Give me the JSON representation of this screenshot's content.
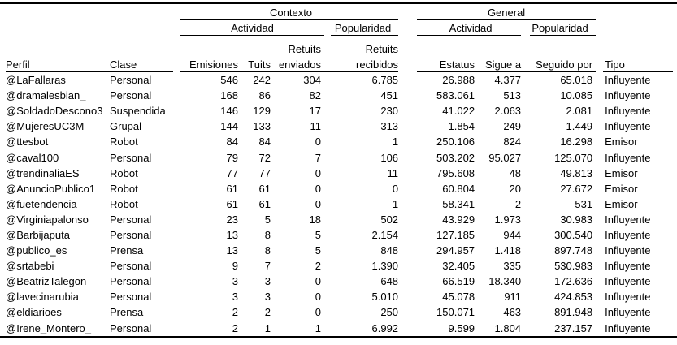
{
  "colors": {
    "text": "#000000",
    "rule_lines": "#000000",
    "background": "#ffffff"
  },
  "table": {
    "header": {
      "contexto": "Contexto",
      "general": "General",
      "contexto_actividad": "Actividad",
      "contexto_popularidad": "Popularidad",
      "general_actividad": "Actividad",
      "general_popularidad": "Popularidad",
      "perfil": "Perfil",
      "clase": "Clase",
      "emisiones": "Emisiones",
      "tuits": "Tuits",
      "retuits_enviados_l1": "Retuits",
      "retuits_enviados_l2": "enviados",
      "retuits_recibidos_l1": "Retuits",
      "retuits_recibidos_l2": "recibidos",
      "estatus": "Estatus",
      "sigue_a": "Sigue a",
      "seguido_por": "Seguido por",
      "tipo": "Tipo"
    },
    "column_keys": [
      "perfil",
      "clase",
      "emisiones",
      "tuits",
      "retuits-enviados",
      "retuits-recibidos",
      "estatus",
      "sigue-a",
      "seguido-por",
      "tipo"
    ],
    "rows": [
      [
        "@LaFallaras",
        "Personal",
        "546",
        "242",
        "304",
        "6.785",
        "26.988",
        "4.377",
        "65.018",
        "Influyente"
      ],
      [
        "@dramalesbian_",
        "Personal",
        "168",
        "86",
        "82",
        "451",
        "583.061",
        "513",
        "10.085",
        "Influyente"
      ],
      [
        "@SoldadoDescono3",
        "Suspendida",
        "146",
        "129",
        "17",
        "230",
        "41.022",
        "2.063",
        "2.081",
        "Influyente"
      ],
      [
        "@MujeresUC3M",
        "Grupal",
        "144",
        "133",
        "11",
        "313",
        "1.854",
        "249",
        "1.449",
        "Influyente"
      ],
      [
        "@ttesbot",
        "Robot",
        "84",
        "84",
        "0",
        "1",
        "250.106",
        "824",
        "16.298",
        "Emisor"
      ],
      [
        "@caval100",
        "Personal",
        "79",
        "72",
        "7",
        "106",
        "503.202",
        "95.027",
        "125.070",
        "Influyente"
      ],
      [
        "@trendinaliaES",
        "Robot",
        "77",
        "77",
        "0",
        "11",
        "795.608",
        "48",
        "49.813",
        "Emisor"
      ],
      [
        "@AnuncioPublico1",
        "Robot",
        "61",
        "61",
        "0",
        "0",
        "60.804",
        "20",
        "27.672",
        "Emisor"
      ],
      [
        "@fuetendencia",
        "Robot",
        "61",
        "61",
        "0",
        "1",
        "58.341",
        "2",
        "531",
        "Emisor"
      ],
      [
        "@Virginiapalonso",
        "Personal",
        "23",
        "5",
        "18",
        "502",
        "43.929",
        "1.973",
        "30.983",
        "Influyente"
      ],
      [
        "@Barbijaputa",
        "Personal",
        "13",
        "8",
        "5",
        "2.154",
        "127.185",
        "944",
        "300.540",
        "Influyente"
      ],
      [
        "@publico_es",
        "Prensa",
        "13",
        "8",
        "5",
        "848",
        "294.957",
        "1.418",
        "897.748",
        "Influyente"
      ],
      [
        "@srtabebi",
        "Personal",
        "9",
        "7",
        "2",
        "1.390",
        "32.405",
        "335",
        "530.983",
        "Influyente"
      ],
      [
        "@BeatrizTalegon",
        "Personal",
        "3",
        "3",
        "0",
        "648",
        "66.519",
        "18.340",
        "172.636",
        "Influyente"
      ],
      [
        "@lavecinarubia",
        "Personal",
        "3",
        "3",
        "0",
        "5.010",
        "45.078",
        "911",
        "424.853",
        "Influyente"
      ],
      [
        "@eldiarioes",
        "Prensa",
        "2",
        "2",
        "0",
        "250",
        "150.071",
        "463",
        "891.948",
        "Influyente"
      ],
      [
        "@Irene_Montero_",
        "Personal",
        "2",
        "1",
        "1",
        "6.992",
        "9.599",
        "1.804",
        "237.157",
        "Influyente"
      ]
    ]
  }
}
